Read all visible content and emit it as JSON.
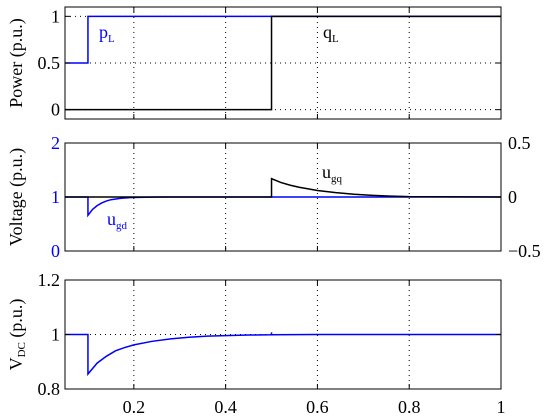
{
  "chart_data": [
    {
      "type": "line",
      "ylabel": "Power (p.u.)",
      "xlim": [
        0.05,
        1.0
      ],
      "ylim": [
        -0.1,
        1.1
      ],
      "yticks": [
        "0",
        "0.5",
        "1"
      ],
      "grid": true,
      "annotations": {
        "p_main": "p",
        "p_sub": "L",
        "q_main": "q",
        "q_sub": "L"
      },
      "series": [
        {
          "color": "#0000ff",
          "x": [
            0.05,
            0.1,
            0.1,
            0.5,
            0.5,
            1.0
          ],
          "y": [
            0.5,
            0.5,
            1.0,
            1.0,
            1.0,
            1.0
          ]
        },
        {
          "color": "#000000",
          "x": [
            0.05,
            0.5,
            0.5,
            1.0
          ],
          "y": [
            0.0,
            0.0,
            1.0,
            1.0
          ]
        }
      ]
    },
    {
      "type": "line",
      "ylabel": "Voltage (p.u.)",
      "xlim": [
        0.05,
        1.0
      ],
      "ylim": [
        0,
        2
      ],
      "yticks": [
        "0",
        "1",
        "2"
      ],
      "y2lim": [
        -0.5,
        0.5
      ],
      "y2ticks": [
        "−0.5",
        "0",
        "0.5"
      ],
      "grid": true,
      "annotations": {
        "ugd_main": "u",
        "ugd_sub": "gd",
        "ugq_main": "u",
        "ugq_sub": "gq"
      },
      "series": [
        {
          "color": "#0000ff",
          "x": [
            0.05,
            0.1,
            0.1,
            0.11,
            0.12,
            0.13,
            0.14,
            0.15,
            0.17,
            0.19,
            0.21,
            0.24,
            0.27,
            0.3,
            1.0
          ],
          "y": [
            1.0,
            1.0,
            0.66,
            0.77,
            0.84,
            0.89,
            0.925,
            0.95,
            0.975,
            0.988,
            0.994,
            0.998,
            1.0,
            1.0,
            1.0
          ]
        },
        {
          "color": "#000000",
          "x": [
            0.05,
            0.5,
            0.5,
            0.52,
            0.54,
            0.56,
            0.6,
            0.64,
            0.68,
            0.72,
            0.76,
            0.8,
            1.0
          ],
          "y": [
            0.0,
            0.0,
            0.17,
            0.135,
            0.11,
            0.09,
            0.06,
            0.04,
            0.025,
            0.015,
            0.008,
            0.003,
            0.0
          ]
        }
      ]
    },
    {
      "type": "line",
      "ylabel": "V",
      "ylabel_sub": "DC",
      "ylabel_tail": " (p.u.)",
      "xlim": [
        0.05,
        1.0
      ],
      "ylim": [
        0.8,
        1.2
      ],
      "yticks": [
        "0.8",
        "1",
        "1.2"
      ],
      "xticks": [
        "0.2",
        "0.4",
        "0.6",
        "0.8",
        "1"
      ],
      "grid": true,
      "series": [
        {
          "color": "#0000ff",
          "x": [
            0.05,
            0.1,
            0.1,
            0.12,
            0.14,
            0.16,
            0.18,
            0.2,
            0.24,
            0.28,
            0.32,
            0.36,
            0.4,
            0.45,
            0.5,
            0.5,
            0.5,
            0.6,
            0.7,
            0.8,
            1.0
          ],
          "y": [
            1.0,
            1.0,
            0.855,
            0.895,
            0.92,
            0.94,
            0.952,
            0.962,
            0.975,
            0.984,
            0.99,
            0.994,
            0.996,
            0.998,
            0.999,
            1.008,
            0.999,
            1.0,
            1.0,
            1.0,
            1.0
          ]
        }
      ]
    }
  ]
}
